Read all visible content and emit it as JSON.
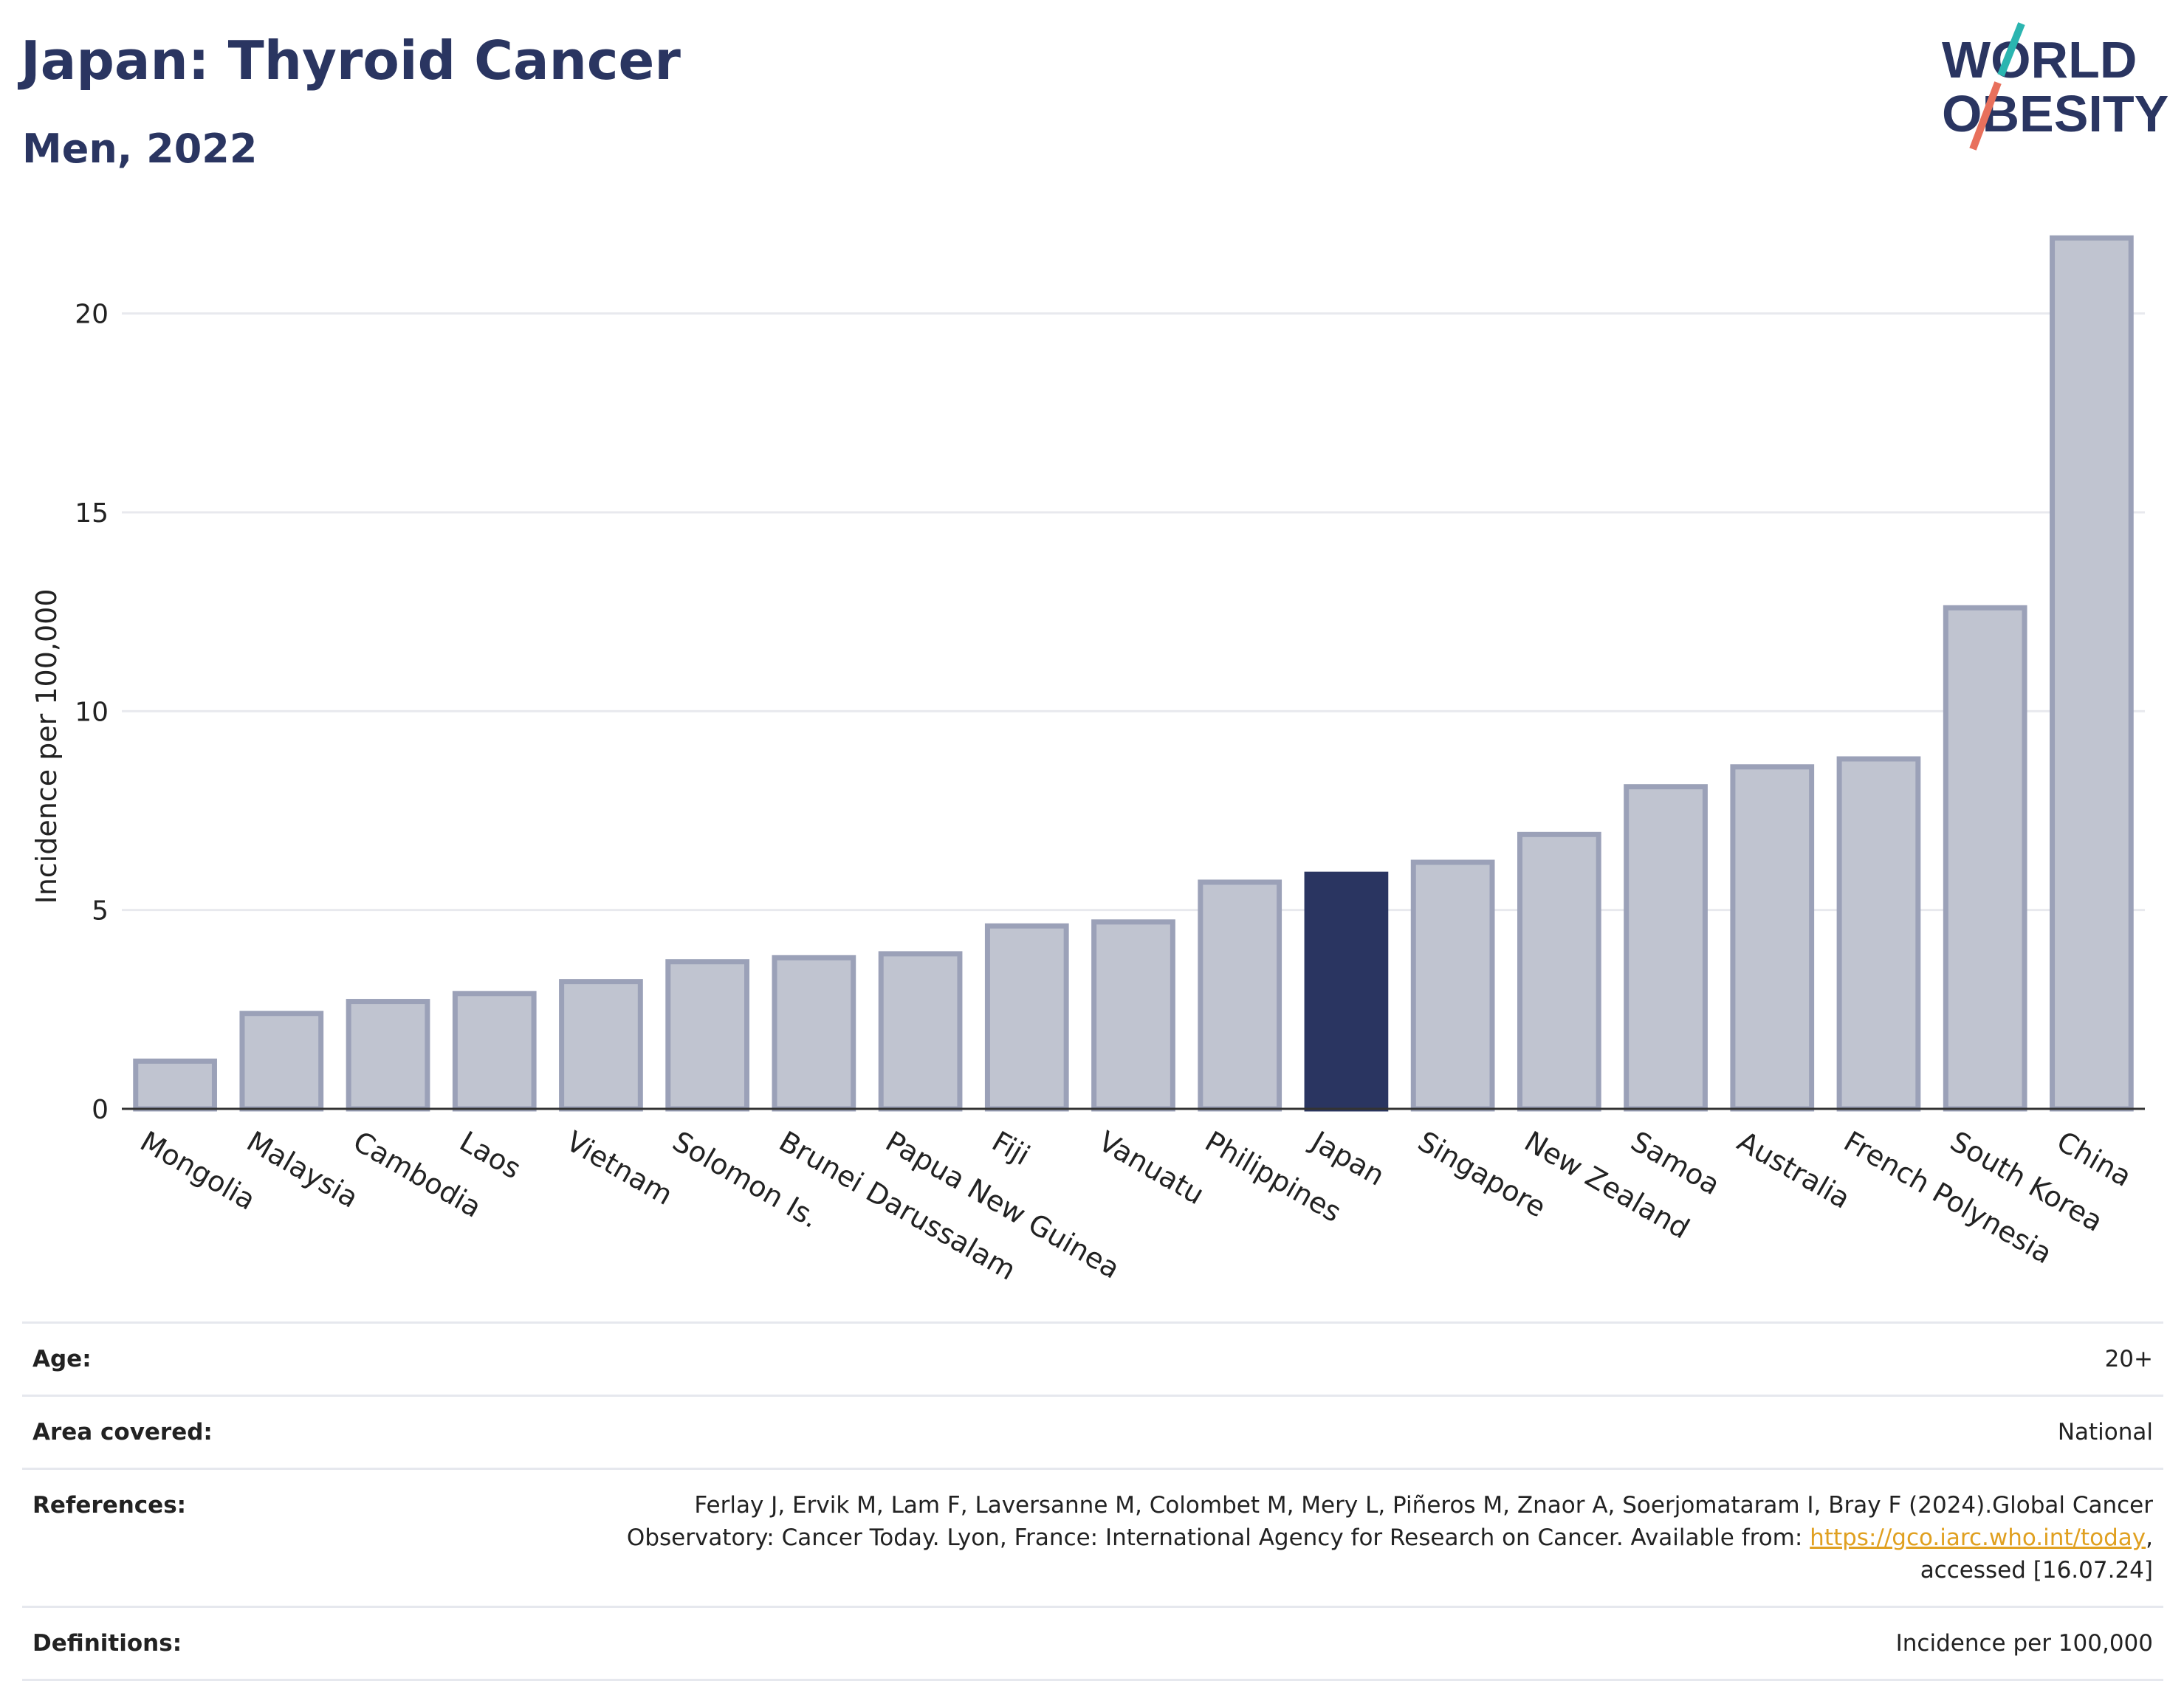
{
  "header": {
    "title": "Japan: Thyroid Cancer",
    "subtitle": "Men, 2022"
  },
  "logo": {
    "line1": "WORLD",
    "line2": "OBESITY",
    "colors": {
      "text": "#2a3561",
      "slash_top": "#2bb5b0",
      "slash_bottom": "#e8705c"
    }
  },
  "chart_data": {
    "type": "bar",
    "ylabel": "Incidence per 100,000",
    "xlabel": "",
    "ylim": [
      0,
      22.5
    ],
    "yticks": [
      0,
      5,
      10,
      15,
      20
    ],
    "grid": true,
    "highlight": "Japan",
    "colors": {
      "bar": "#c0c4d0",
      "bar_edge": "#9ba1b8",
      "highlight": "#2a3561",
      "grid": "#e8e9ee",
      "axis": "#333333"
    },
    "categories": [
      "Mongolia",
      "Malaysia",
      "Cambodia",
      "Laos",
      "Vietnam",
      "Solomon Is.",
      "Brunei Darussalam",
      "Papua New Guinea",
      "Fiji",
      "Vanuatu",
      "Philippines",
      "Japan",
      "Singapore",
      "New Zealand",
      "Samoa",
      "Australia",
      "French Polynesia",
      "South Korea",
      "China"
    ],
    "values": [
      1.2,
      2.4,
      2.7,
      2.9,
      3.2,
      3.7,
      3.8,
      3.9,
      4.6,
      4.7,
      5.7,
      5.9,
      6.2,
      6.9,
      8.1,
      8.6,
      8.8,
      12.6,
      21.9
    ]
  },
  "info": {
    "age_label": "Age:",
    "age_value": "20+",
    "area_label": "Area covered:",
    "area_value": "National",
    "references_label": "References:",
    "references_line1": "Ferlay J, Ervik M, Lam F, Laversanne M, Colombet M, Mery L, Piñeros M, Znaor A, Soerjomataram I, Bray F (2024).Global Cancer",
    "references_line2": "Observatory: Cancer Today. Lyon, France: International Agency for Research on Cancer. Available from: ",
    "references_link": "https://gco.iarc.who.int/today",
    "references_line2_end": ",",
    "references_line3": "accessed [16.07.24]",
    "definitions_label": "Definitions:",
    "definitions_value": "Incidence per 100,000"
  }
}
